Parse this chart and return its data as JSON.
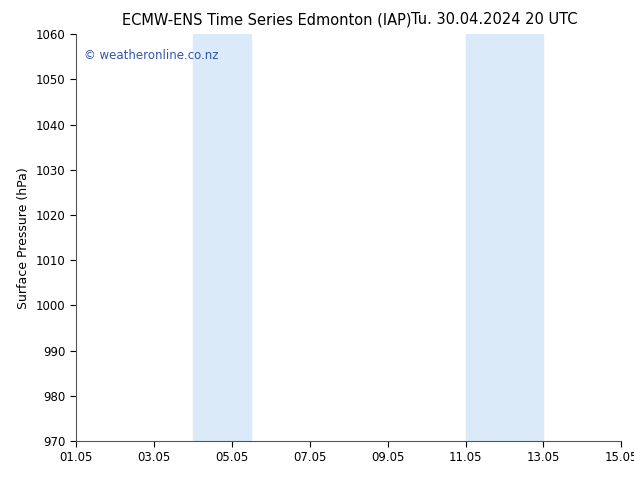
{
  "title_left": "ECMW-ENS Time Series Edmonton (IAP)",
  "title_right": "Tu. 30.04.2024 20 UTC",
  "ylabel": "Surface Pressure (hPa)",
  "ylim": [
    970,
    1060
  ],
  "yticks": [
    970,
    980,
    990,
    1000,
    1010,
    1020,
    1030,
    1040,
    1050,
    1060
  ],
  "xlim_start": 0,
  "xlim_end": 14,
  "xtick_positions": [
    0,
    2,
    4,
    6,
    8,
    10,
    12,
    14
  ],
  "xtick_labels": [
    "01.05",
    "03.05",
    "05.05",
    "07.05",
    "09.05",
    "11.05",
    "13.05",
    "15.05"
  ],
  "shaded_bands": [
    {
      "xmin": 3.0,
      "xmax": 4.5
    },
    {
      "xmin": 10.0,
      "xmax": 12.0
    }
  ],
  "band_color": "#daeaf8",
  "background_color": "#ffffff",
  "plot_bg_color": "#ffffff",
  "watermark": "© weatheronline.co.nz",
  "watermark_color": "#3355aa",
  "title_fontsize": 10.5,
  "label_fontsize": 9,
  "tick_fontsize": 8.5,
  "watermark_fontsize": 8.5
}
